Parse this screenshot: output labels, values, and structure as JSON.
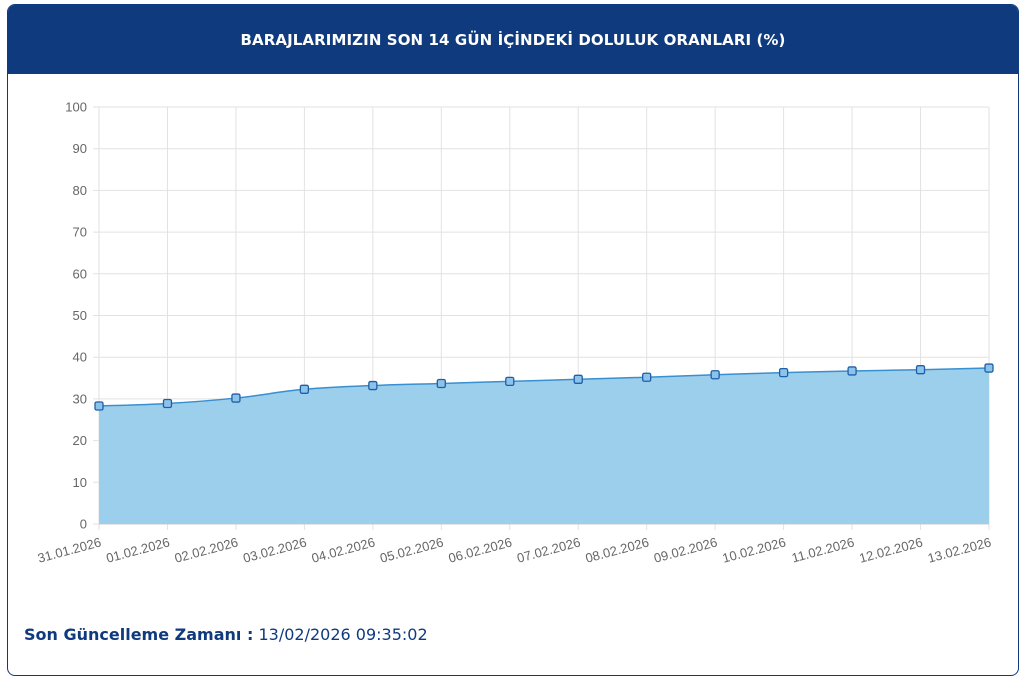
{
  "header": {
    "title": "BARAJLARIMIZIN SON 14 GÜN İÇİNDEKİ DOLULUK ORANLARI (%)"
  },
  "footer": {
    "label": "Son Güncelleme Zamanı :",
    "value": "13/02/2026 09:35:02"
  },
  "colors": {
    "header_bg": "#0f3a7d",
    "area_fill": "#9ccfec",
    "line": "#3a8fd0",
    "marker": "#1f5fa8"
  },
  "chart_data": {
    "type": "area",
    "title": "",
    "xlabel": "",
    "ylabel": "",
    "ylim": [
      0,
      100
    ],
    "yticks": [
      0,
      10,
      20,
      30,
      40,
      50,
      60,
      70,
      80,
      90,
      100
    ],
    "grid": true,
    "categories": [
      "31.01.2026",
      "01.02.2026",
      "02.02.2026",
      "03.02.2026",
      "04.02.2026",
      "05.02.2026",
      "06.02.2026",
      "07.02.2026",
      "08.02.2026",
      "09.02.2026",
      "10.02.2026",
      "11.02.2026",
      "12.02.2026",
      "13.02.2026"
    ],
    "series": [
      {
        "values": [
          28.3,
          28.9,
          30.2,
          32.3,
          33.2,
          33.7,
          34.2,
          34.7,
          35.2,
          35.8,
          36.3,
          36.7,
          37.0,
          37.4
        ]
      }
    ]
  }
}
